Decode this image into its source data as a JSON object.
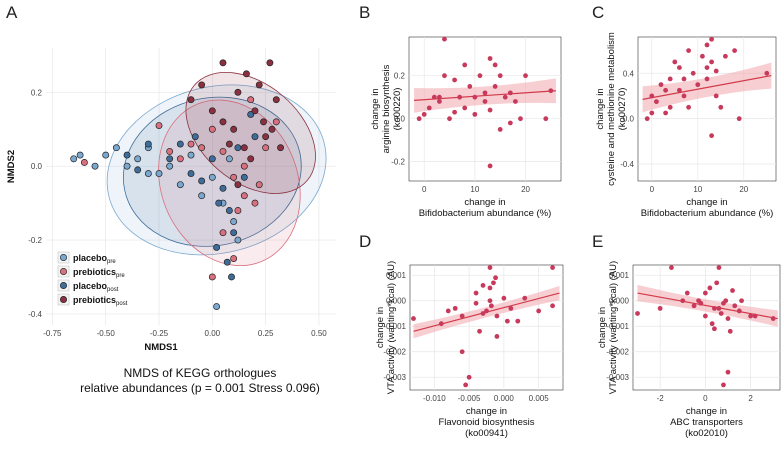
{
  "panels": {
    "A": "A",
    "B": "B",
    "C": "C",
    "D": "D",
    "E": "E"
  },
  "colors": {
    "placebo_pre": "#7aa8cf",
    "prebiotics_pre": "#d9707f",
    "placebo_post": "#3e6d9c",
    "prebiotics_post": "#8b3040",
    "point": "#c83a5c",
    "line": "#d23a4a",
    "band": "#f1a7ad"
  },
  "chart_data": [
    {
      "panel": "A",
      "type": "scatter",
      "xlabel": "NMDS1",
      "ylabel": "NMDS2",
      "xlim": [
        -0.78,
        0.58
      ],
      "ylim": [
        -0.43,
        0.32
      ],
      "xticks": [
        -0.75,
        -0.5,
        -0.25,
        0.0,
        0.25,
        0.5
      ],
      "xtick_labels": [
        "-0.75",
        "-0.50",
        "-0.25",
        "0.00",
        "0.25",
        "0.50"
      ],
      "yticks": [
        0.2,
        0.0,
        -0.2,
        -0.4
      ],
      "ytick_labels": [
        "0.2",
        "0.0",
        "-0.2",
        "-0.4"
      ],
      "caption_line1": "NMDS of KEGG orthologues",
      "caption_line2": "relative abundances (p = 0.001 Stress 0.096)",
      "legend": [
        {
          "key": "placebo_pre",
          "label": "placebo",
          "sub": "pre"
        },
        {
          "key": "prebiotics_pre",
          "label": "prebiotics",
          "sub": "pre"
        },
        {
          "key": "placebo_post",
          "label": "placebo",
          "sub": "post"
        },
        {
          "key": "prebiotics_post",
          "label": "prebiotics",
          "sub": "post"
        }
      ],
      "ellipses": [
        {
          "group": "placebo_pre",
          "cx": 0.02,
          "cy": -0.01,
          "rx": 0.52,
          "ry": 0.225,
          "angle": -14
        },
        {
          "group": "placebo_post",
          "cx": 0.0,
          "cy": -0.015,
          "rx": 0.42,
          "ry": 0.2,
          "angle": -12
        },
        {
          "group": "prebiotics_pre",
          "cx": 0.08,
          "cy": -0.045,
          "rx": 0.32,
          "ry": 0.23,
          "angle": -22
        },
        {
          "group": "prebiotics_post",
          "cx": 0.18,
          "cy": 0.09,
          "rx": 0.23,
          "ry": 0.2,
          "angle": -50
        }
      ],
      "series": [
        {
          "group": "placebo_pre",
          "points": [
            [
              -0.65,
              0.02
            ],
            [
              -0.62,
              0.03
            ],
            [
              -0.55,
              0.0
            ],
            [
              -0.5,
              0.03
            ],
            [
              -0.45,
              0.05
            ],
            [
              -0.4,
              0.0
            ],
            [
              -0.35,
              0.02
            ],
            [
              -0.3,
              0.05
            ],
            [
              -0.25,
              -0.02
            ],
            [
              -0.2,
              0.0
            ],
            [
              -0.1,
              0.03
            ],
            [
              0.0,
              -0.03
            ],
            [
              0.05,
              -0.1
            ],
            [
              0.1,
              -0.15
            ],
            [
              0.02,
              -0.38
            ],
            [
              -0.15,
              -0.05
            ],
            [
              0.08,
              0.02
            ],
            [
              -0.05,
              -0.08
            ],
            [
              0.12,
              -0.2
            ],
            [
              -0.3,
              -0.02
            ]
          ]
        },
        {
          "group": "prebiotics_pre",
          "points": [
            [
              -0.6,
              0.01
            ],
            [
              -0.25,
              0.11
            ],
            [
              -0.2,
              0.04
            ],
            [
              -0.1,
              0.06
            ],
            [
              0.0,
              0.1
            ],
            [
              0.05,
              0.04
            ],
            [
              0.1,
              -0.03
            ],
            [
              0.15,
              -0.08
            ],
            [
              0.2,
              -0.1
            ],
            [
              0.25,
              0.05
            ],
            [
              0.05,
              -0.18
            ],
            [
              0.0,
              -0.3
            ],
            [
              0.1,
              -0.25
            ],
            [
              -0.05,
              0.05
            ],
            [
              0.15,
              0.0
            ],
            [
              0.3,
              0.12
            ],
            [
              0.12,
              -0.12
            ],
            [
              0.18,
              0.18
            ],
            [
              -0.15,
              0.02
            ],
            [
              0.22,
              -0.05
            ]
          ]
        },
        {
          "group": "placebo_post",
          "points": [
            [
              -0.4,
              0.03
            ],
            [
              -0.35,
              -0.01
            ],
            [
              -0.3,
              0.06
            ],
            [
              -0.2,
              0.02
            ],
            [
              -0.15,
              0.06
            ],
            [
              -0.1,
              -0.02
            ],
            [
              -0.05,
              -0.04
            ],
            [
              0.0,
              0.02
            ],
            [
              0.05,
              -0.06
            ],
            [
              0.08,
              -0.12
            ],
            [
              0.1,
              -0.18
            ],
            [
              0.02,
              -0.22
            ],
            [
              0.07,
              -0.26
            ],
            [
              0.12,
              0.05
            ],
            [
              0.15,
              -0.03
            ],
            [
              0.2,
              0.08
            ],
            [
              0.03,
              -0.1
            ],
            [
              0.09,
              -0.3
            ],
            [
              -0.08,
              0.08
            ],
            [
              0.18,
              0.14
            ]
          ]
        },
        {
          "group": "prebiotics_post",
          "points": [
            [
              -0.05,
              0.22
            ],
            [
              0.0,
              0.15
            ],
            [
              0.05,
              0.12
            ],
            [
              0.1,
              0.1
            ],
            [
              0.12,
              0.2
            ],
            [
              0.15,
              0.05
            ],
            [
              0.2,
              0.15
            ],
            [
              0.25,
              0.08
            ],
            [
              0.27,
              0.28
            ],
            [
              0.3,
              0.18
            ],
            [
              0.28,
              0.1
            ],
            [
              0.22,
              0.22
            ],
            [
              0.18,
              0.02
            ],
            [
              0.12,
              -0.05
            ],
            [
              0.08,
              0.06
            ],
            [
              0.05,
              0.28
            ],
            [
              -0.1,
              0.18
            ],
            [
              0.32,
              0.05
            ],
            [
              0.24,
              0.12
            ],
            [
              0.16,
              0.25
            ]
          ]
        }
      ]
    },
    {
      "panel": "B",
      "type": "scatter",
      "ylabel_lines": [
        "change in",
        "arginine biosynthesis",
        "(ko00220)"
      ],
      "xlabel_lines": [
        "change in",
        "Bifidobacterium abundance (%)"
      ],
      "xlim": [
        -3,
        27
      ],
      "ylim": [
        -0.29,
        0.38
      ],
      "xticks": [
        0,
        10,
        20
      ],
      "xtick_labels": [
        "0",
        "10",
        "20"
      ],
      "yticks": [
        0.2,
        0.0,
        -0.2
      ],
      "ytick_labels": [
        "0.2",
        "0.0",
        "-0.2"
      ],
      "fit": {
        "x0": -2,
        "y0": 0.085,
        "x1": 26,
        "y1": 0.13,
        "band": 0.025
      },
      "points": [
        [
          -1,
          0.0
        ],
        [
          0,
          0.02
        ],
        [
          1,
          0.05
        ],
        [
          2,
          0.1
        ],
        [
          3,
          0.1
        ],
        [
          4,
          0.37
        ],
        [
          4,
          0.2
        ],
        [
          5,
          0.0
        ],
        [
          6,
          0.03
        ],
        [
          6,
          0.18
        ],
        [
          7,
          0.1
        ],
        [
          8,
          0.05
        ],
        [
          8,
          0.25
        ],
        [
          9,
          0.15
        ],
        [
          10,
          0.1
        ],
        [
          11,
          0.2
        ],
        [
          12,
          0.08
        ],
        [
          12,
          0.12
        ],
        [
          13,
          0.28
        ],
        [
          13,
          0.04
        ],
        [
          14,
          0.25
        ],
        [
          14,
          0.15
        ],
        [
          15,
          -0.05
        ],
        [
          15,
          0.2
        ],
        [
          16,
          0.1
        ],
        [
          17,
          -0.02
        ],
        [
          18,
          0.08
        ],
        [
          19,
          0.0
        ],
        [
          20,
          0.2
        ],
        [
          24,
          0.0
        ],
        [
          25,
          0.13
        ],
        [
          13,
          -0.22
        ],
        [
          10,
          0.02
        ],
        [
          3,
          0.08
        ],
        [
          17,
          0.12
        ]
      ]
    },
    {
      "panel": "C",
      "type": "scatter",
      "ylabel_lines": [
        "change in",
        "cysteine and methionine metabolism",
        "(ko00270)"
      ],
      "xlabel_lines": [
        "change in",
        "Bifidobacterium abundance (%)"
      ],
      "xlim": [
        -3,
        27
      ],
      "ylim": [
        -0.55,
        0.72
      ],
      "xticks": [
        0,
        10,
        20
      ],
      "xtick_labels": [
        "0",
        "10",
        "20"
      ],
      "yticks": [
        0.4,
        0.0,
        -0.4
      ],
      "ytick_labels": [
        "0.4",
        "0.0",
        "-0.4"
      ],
      "fit": {
        "x0": -2,
        "y0": 0.17,
        "x1": 26,
        "y1": 0.38,
        "band": 0.05
      },
      "points": [
        [
          -1,
          0.0
        ],
        [
          0,
          0.05
        ],
        [
          0,
          0.2
        ],
        [
          1,
          0.15
        ],
        [
          2,
          0.3
        ],
        [
          3,
          0.05
        ],
        [
          3,
          0.25
        ],
        [
          4,
          0.1
        ],
        [
          4,
          0.35
        ],
        [
          5,
          0.5
        ],
        [
          6,
          0.25
        ],
        [
          6,
          0.45
        ],
        [
          7,
          0.2
        ],
        [
          8,
          0.6
        ],
        [
          8,
          0.1
        ],
        [
          9,
          0.4
        ],
        [
          10,
          0.3
        ],
        [
          11,
          0.55
        ],
        [
          12,
          0.35
        ],
        [
          12,
          0.45
        ],
        [
          13,
          0.7
        ],
        [
          13,
          0.5
        ],
        [
          13,
          -0.15
        ],
        [
          14,
          0.42
        ],
        [
          14,
          0.2
        ],
        [
          15,
          0.1
        ],
        [
          16,
          0.55
        ],
        [
          18,
          0.6
        ],
        [
          19,
          0.0
        ],
        [
          25,
          0.4
        ],
        [
          12,
          0.65
        ],
        [
          7,
          0.35
        ]
      ]
    },
    {
      "panel": "D",
      "type": "scatter",
      "ylabel_lines": [
        "change in",
        "VTA activity (wanting*kcal) (AU)"
      ],
      "xlabel_lines": [
        "change in",
        "Flavonoid biosynthesis",
        "(ko00941)"
      ],
      "xlim": [
        -0.0135,
        0.0085
      ],
      "ylim": [
        -0.0035,
        0.0014
      ],
      "xticks": [
        -0.01,
        -0.005,
        0.0,
        0.005
      ],
      "xtick_labels": [
        "-0.010",
        "-0.005",
        "0.000",
        "0.005"
      ],
      "yticks": [
        0.001,
        0.0,
        -0.001,
        -0.002,
        -0.003
      ],
      "ytick_labels": [
        "0.001",
        "0.000",
        "-0.001",
        "-0.002",
        "-0.003"
      ],
      "fit": {
        "x0": -0.013,
        "y0": -0.0012,
        "x1": 0.008,
        "y1": 0.0003,
        "band": 0.00012
      },
      "points": [
        [
          -0.013,
          -0.0007
        ],
        [
          -0.009,
          -0.0009
        ],
        [
          -0.008,
          -0.0004
        ],
        [
          -0.007,
          -0.0003
        ],
        [
          -0.006,
          -0.0006
        ],
        [
          -0.006,
          -0.002
        ],
        [
          -0.0055,
          -0.0033
        ],
        [
          -0.005,
          -0.003
        ],
        [
          -0.004,
          0.0003
        ],
        [
          -0.004,
          -0.0001
        ],
        [
          -0.0035,
          -0.0012
        ],
        [
          -0.003,
          0.0006
        ],
        [
          -0.0025,
          -0.0004
        ],
        [
          -0.002,
          0.0013
        ],
        [
          -0.002,
          0.0005
        ],
        [
          -0.0018,
          -0.0002
        ],
        [
          -0.0015,
          0.0007
        ],
        [
          -0.001,
          -0.0006
        ],
        [
          -0.001,
          -0.0014
        ],
        [
          0.0,
          0.0001
        ],
        [
          0.0005,
          -0.0008
        ],
        [
          0.001,
          -0.0003
        ],
        [
          0.002,
          -0.0008
        ],
        [
          0.003,
          0.0001
        ],
        [
          0.005,
          -0.0004
        ],
        [
          0.007,
          0.0013
        ],
        [
          0.007,
          -0.0002
        ],
        [
          -0.002,
          0.0
        ],
        [
          -0.003,
          -0.0005
        ],
        [
          -0.0012,
          0.0009
        ]
      ]
    },
    {
      "panel": "E",
      "type": "scatter",
      "ylabel_lines": [
        "change in",
        "VTA activity (wanting*kcal) (AU)"
      ],
      "xlabel_lines": [
        "change in",
        "ABC transporters",
        "(ko02010)"
      ],
      "xlim": [
        -3.2,
        3.3
      ],
      "ylim": [
        -0.0035,
        0.0014
      ],
      "xticks": [
        -2,
        0,
        2
      ],
      "xtick_labels": [
        "-2",
        "0",
        "2"
      ],
      "yticks": [
        0.001,
        0.0,
        -0.001,
        -0.002,
        -0.003
      ],
      "ytick_labels": [
        "0.001",
        "0.000",
        "-0.001",
        "-0.002",
        "-0.003"
      ],
      "fit": {
        "x0": -3,
        "y0": 0.0003,
        "x1": 3.2,
        "y1": -0.0007,
        "band": 0.00014
      },
      "points": [
        [
          -3,
          -0.0005
        ],
        [
          -2,
          -0.0003
        ],
        [
          -1.5,
          0.0013
        ],
        [
          -1,
          0.0
        ],
        [
          -0.8,
          0.0003
        ],
        [
          -0.5,
          -0.0002
        ],
        [
          -0.3,
          0.0
        ],
        [
          0,
          0.0003
        ],
        [
          0,
          -0.0006
        ],
        [
          0.2,
          0.0005
        ],
        [
          0.3,
          -0.0009
        ],
        [
          0.4,
          -0.0003
        ],
        [
          0.5,
          0.0007
        ],
        [
          0.6,
          0.0013
        ],
        [
          0.6,
          -0.0003
        ],
        [
          0.7,
          -0.0005
        ],
        [
          0.8,
          -0.0001
        ],
        [
          0.9,
          0.0
        ],
        [
          1.0,
          -0.0007
        ],
        [
          1.0,
          -0.0028
        ],
        [
          1.1,
          -0.0012
        ],
        [
          1.2,
          0.0004
        ],
        [
          1.3,
          -0.0002
        ],
        [
          1.5,
          -0.0004
        ],
        [
          1.6,
          0.0
        ],
        [
          2.0,
          -0.0006
        ],
        [
          2.2,
          -0.0006
        ],
        [
          3.0,
          -0.0007
        ],
        [
          0.8,
          -0.0033
        ],
        [
          0.4,
          -0.0011
        ],
        [
          -0.2,
          -0.0001
        ]
      ]
    }
  ]
}
